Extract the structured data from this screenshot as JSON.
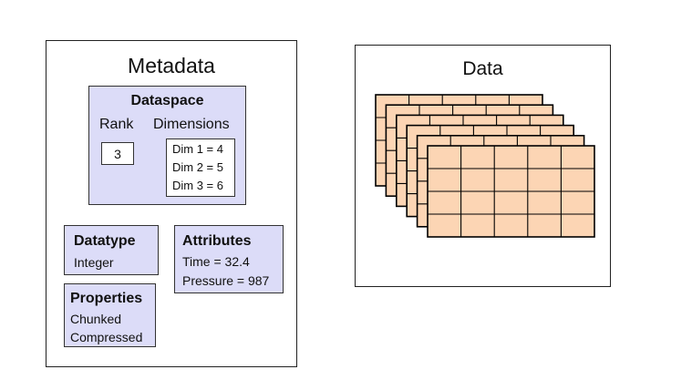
{
  "metadata": {
    "title": "Metadata",
    "dataspace": {
      "title": "Dataspace",
      "rank_label": "Rank",
      "rank_value": "3",
      "dimensions_label": "Dimensions",
      "dims": [
        "Dim 1 = 4",
        "Dim 2 = 5",
        "Dim 3 = 6"
      ]
    },
    "datatype": {
      "title": "Datatype",
      "value": "Integer"
    },
    "attributes": {
      "title": "Attributes",
      "items": [
        "Time = 32.4",
        "Pressure = 987"
      ]
    },
    "properties": {
      "title": "Properties",
      "items": [
        "Chunked",
        "Compressed"
      ]
    }
  },
  "data": {
    "title": "Data",
    "stack_layers": 6,
    "grid_rows": 4,
    "grid_cols": 5,
    "fill_color": "#fcd5b4",
    "line_color": "#000000"
  }
}
